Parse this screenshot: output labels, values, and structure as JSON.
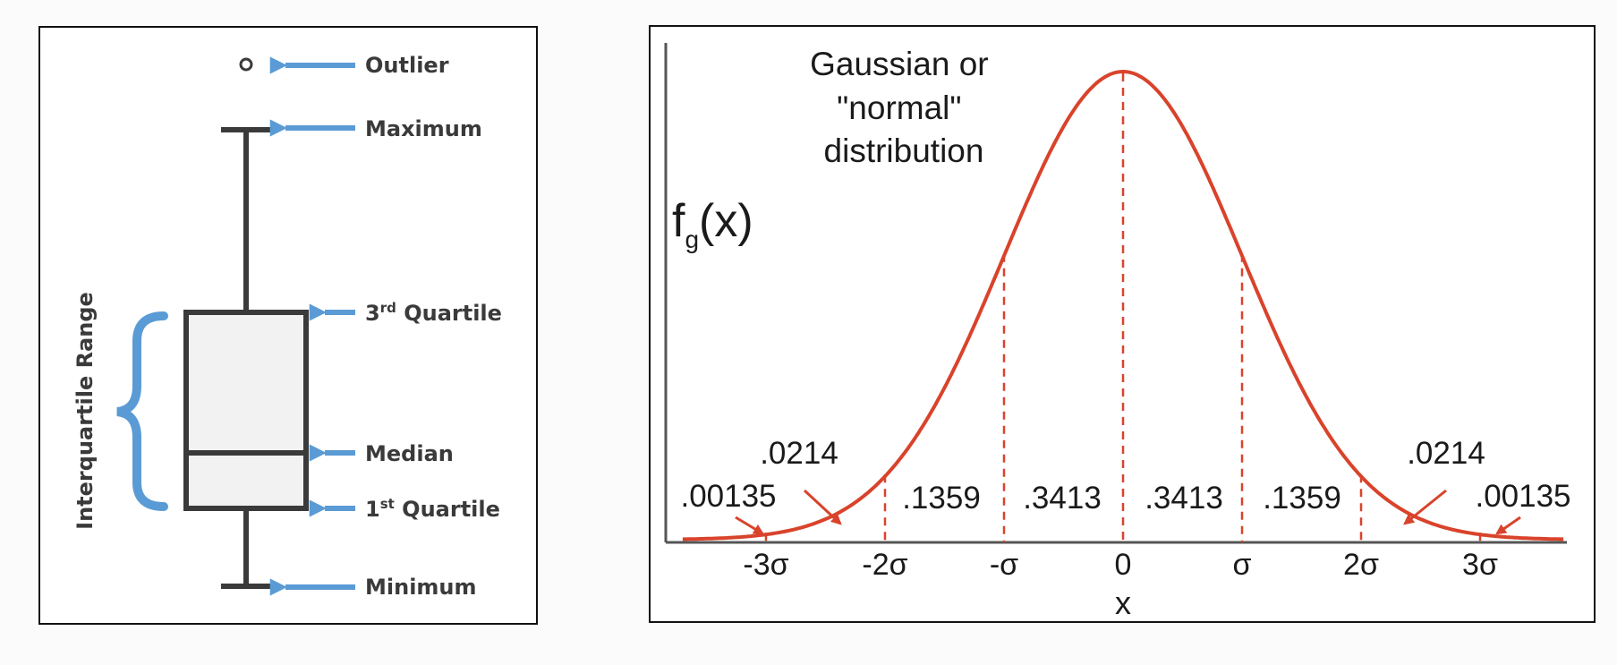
{
  "boxplot": {
    "labels": {
      "outlier": "Outlier",
      "maximum": "Maximum",
      "q3_num": "3",
      "q3_sup": "rd",
      "q3_rest": " Quartile",
      "median": "Median",
      "q1_num": "1",
      "q1_sup": "st",
      "q1_rest": " Quartile",
      "minimum": "Minimum",
      "iqr": "Interquartile Range"
    },
    "colors": {
      "arrow": "#5b9bd5",
      "box_fill": "#f2f2f2",
      "stroke": "#3a3a3a"
    }
  },
  "normal": {
    "title_lines": [
      "Gaussian or",
      "\"normal\"",
      "distribution"
    ],
    "ylabel_main": "f",
    "ylabel_sub": "g",
    "ylabel_rest": "(x)",
    "xlabel": "x",
    "colors": {
      "curve": "#d9432b",
      "axis": "#555555"
    },
    "x_ticks": [
      "-3σ",
      "-2σ",
      "-σ",
      "0",
      "σ",
      "2σ",
      "3σ"
    ],
    "areas": [
      ".00135",
      ".0214",
      ".1359",
      ".3413",
      ".3413",
      ".1359",
      ".0214",
      ".00135"
    ]
  }
}
